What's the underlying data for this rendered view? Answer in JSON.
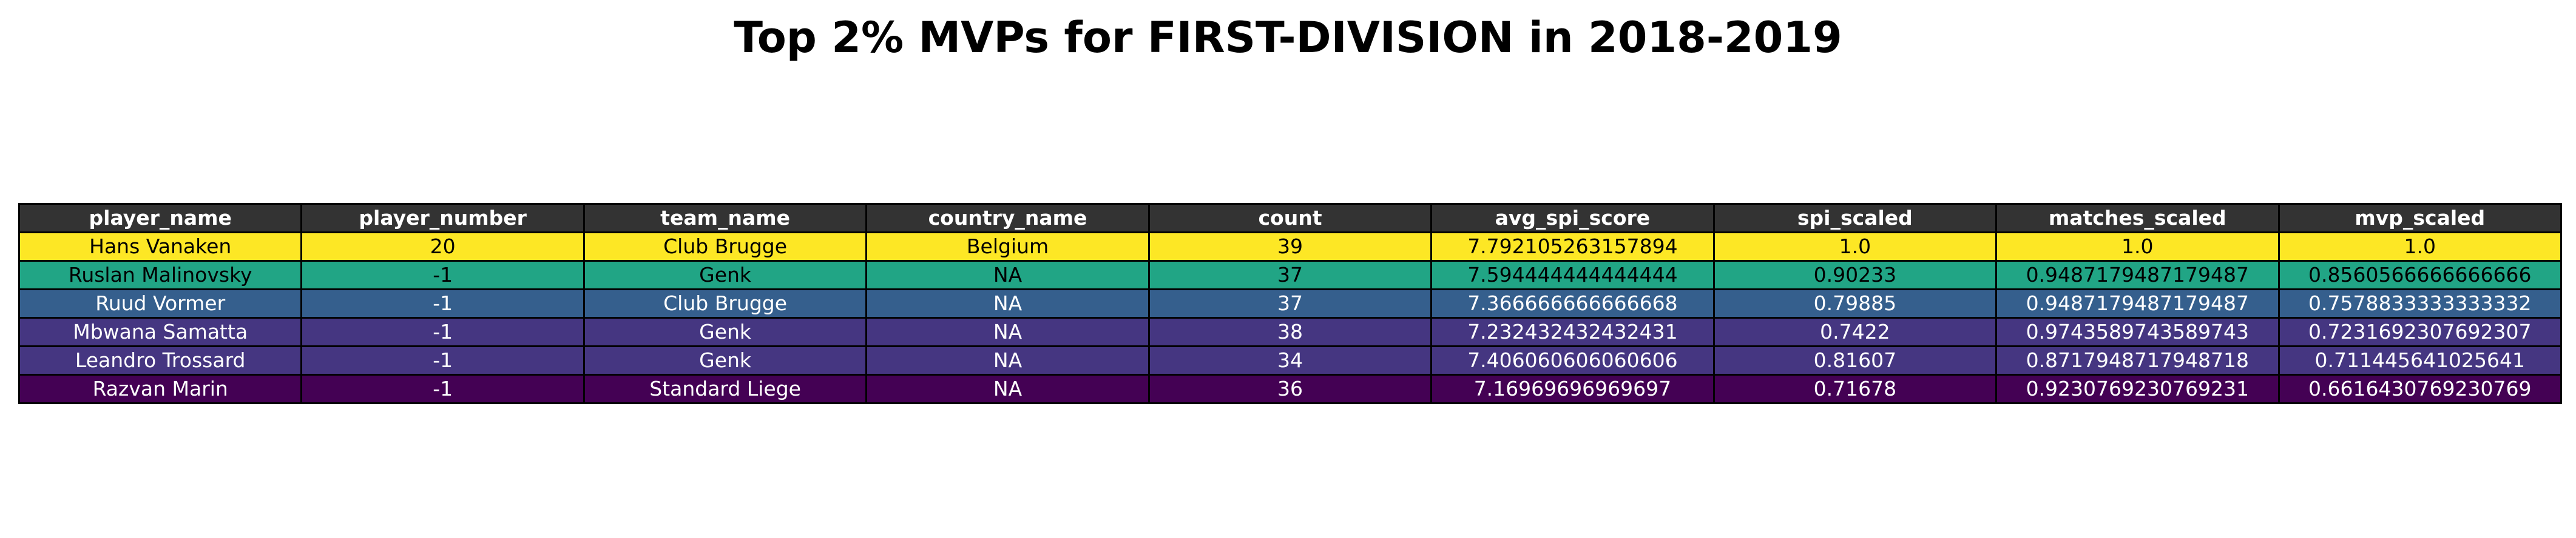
{
  "title": "Top 2% MVPs for FIRST-DIVISION in 2018-2019",
  "colors": {
    "header_bg": "#333333",
    "header_text": "#ffffff",
    "border": "#000000",
    "row_colors": [
      "#fde725",
      "#21a585",
      "#355f8d",
      "#453681",
      "#453681",
      "#440154"
    ],
    "row_text_colors": [
      "#000000",
      "#000000",
      "#ffffff",
      "#ffffff",
      "#ffffff",
      "#ffffff"
    ]
  },
  "chart_data": {
    "type": "table",
    "title": "Top 2% MVPs for FIRST-DIVISION in 2018-2019",
    "columns": [
      "player_name",
      "player_number",
      "team_name",
      "country_name",
      "count",
      "avg_spi_score",
      "spi_scaled",
      "matches_scaled",
      "mvp_scaled"
    ],
    "rows": [
      [
        "Hans Vanaken",
        "20",
        "Club Brugge",
        "Belgium",
        "39",
        "7.792105263157894",
        "1.0",
        "1.0",
        "1.0"
      ],
      [
        "Ruslan Malinovsky",
        "-1",
        "Genk",
        "NA",
        "37",
        "7.594444444444444",
        "0.90233",
        "0.9487179487179487",
        "0.8560566666666666"
      ],
      [
        "Ruud Vormer",
        "-1",
        "Club Brugge",
        "NA",
        "37",
        "7.366666666666668",
        "0.79885",
        "0.9487179487179487",
        "0.7578833333333332"
      ],
      [
        "Mbwana Samatta",
        "-1",
        "Genk",
        "NA",
        "38",
        "7.232432432432431",
        "0.7422",
        "0.9743589743589743",
        "0.7231692307692307"
      ],
      [
        "Leandro Trossard",
        "-1",
        "Genk",
        "NA",
        "34",
        "7.406060606060606",
        "0.81607",
        "0.8717948717948718",
        "0.711445641025641"
      ],
      [
        "Razvan Marin",
        "-1",
        "Standard Liege",
        "NA",
        "36",
        "7.16969696969697",
        "0.71678",
        "0.9230769230769231",
        "0.6616430769230769"
      ]
    ]
  }
}
